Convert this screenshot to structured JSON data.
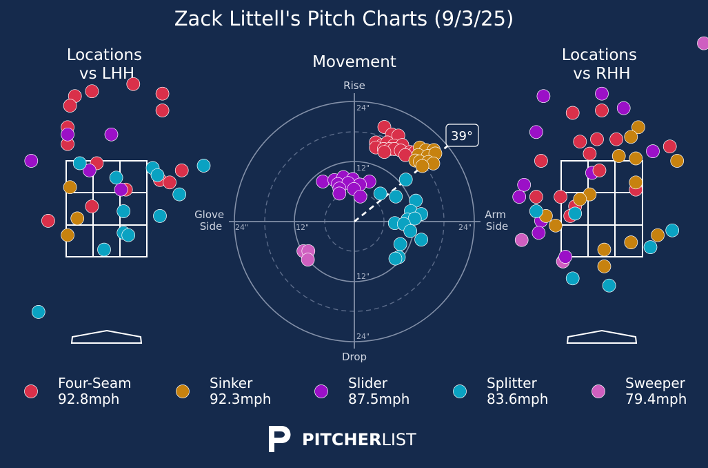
{
  "title": "Zack Littell's Pitch Charts (9/3/25)",
  "colors": {
    "background": "#152a4c",
    "Four-Seam": "#d9304a",
    "Sinker": "#c7820f",
    "Slider": "#9b10c7",
    "Splitter": "#0aa2c2",
    "Sweeper": "#cf5fc0"
  },
  "branding": {
    "pitcher": "PITCHER",
    "list": "LIST"
  },
  "chart_data": [
    {
      "type": "scatter",
      "id": "loc_lhh",
      "title": [
        "Locations",
        "vs LHH"
      ],
      "x_range": [
        -2,
        2
      ],
      "y_range": [
        -0.5,
        6
      ],
      "points": [
        {
          "pitch": "Four-Seam",
          "x": 0.55,
          "y": 5.1
        },
        {
          "pitch": "Four-Seam",
          "x": -0.65,
          "y": 4.85
        },
        {
          "pitch": "Four-Seam",
          "x": 1.15,
          "y": 4.9
        },
        {
          "pitch": "Four-Seam",
          "x": -0.3,
          "y": 4.95
        },
        {
          "pitch": "Four-Seam",
          "x": -0.75,
          "y": 4.65
        },
        {
          "pitch": "Four-Seam",
          "x": 1.15,
          "y": 4.55
        },
        {
          "pitch": "Four-Seam",
          "x": -0.8,
          "y": 4.2
        },
        {
          "pitch": "Four-Seam",
          "x": -0.8,
          "y": 3.85
        },
        {
          "pitch": "Four-Seam",
          "x": -0.2,
          "y": 3.45
        },
        {
          "pitch": "Four-Seam",
          "x": 1.55,
          "y": 3.3
        },
        {
          "pitch": "Four-Seam",
          "x": 1.1,
          "y": 3.1
        },
        {
          "pitch": "Four-Seam",
          "x": 1.3,
          "y": 3.05
        },
        {
          "pitch": "Four-Seam",
          "x": 0.4,
          "y": 2.9
        },
        {
          "pitch": "Four-Seam",
          "x": -0.3,
          "y": 2.55
        },
        {
          "pitch": "Four-Seam",
          "x": -1.2,
          "y": 2.25
        },
        {
          "pitch": "Slider",
          "x": -0.8,
          "y": 4.05
        },
        {
          "pitch": "Slider",
          "x": 0.1,
          "y": 4.05
        },
        {
          "pitch": "Slider",
          "x": -1.55,
          "y": 3.5
        },
        {
          "pitch": "Slider",
          "x": -0.35,
          "y": 3.3
        },
        {
          "pitch": "Slider",
          "x": 0.3,
          "y": 2.9
        },
        {
          "pitch": "Splitter",
          "x": 2.0,
          "y": 3.4
        },
        {
          "pitch": "Splitter",
          "x": 0.95,
          "y": 3.35
        },
        {
          "pitch": "Splitter",
          "x": 1.05,
          "y": 3.2
        },
        {
          "pitch": "Splitter",
          "x": -0.55,
          "y": 3.45
        },
        {
          "pitch": "Splitter",
          "x": 0.2,
          "y": 3.15
        },
        {
          "pitch": "Splitter",
          "x": 1.5,
          "y": 2.8
        },
        {
          "pitch": "Splitter",
          "x": 0.35,
          "y": 2.45
        },
        {
          "pitch": "Splitter",
          "x": 1.1,
          "y": 2.35
        },
        {
          "pitch": "Splitter",
          "x": 0.35,
          "y": 2.0
        },
        {
          "pitch": "Splitter",
          "x": 0.45,
          "y": 1.95
        },
        {
          "pitch": "Splitter",
          "x": -0.05,
          "y": 1.65
        },
        {
          "pitch": "Splitter",
          "x": -1.4,
          "y": 0.35
        },
        {
          "pitch": "Sinker",
          "x": -0.75,
          "y": 2.95
        },
        {
          "pitch": "Sinker",
          "x": -0.6,
          "y": 2.3
        },
        {
          "pitch": "Sinker",
          "x": -0.8,
          "y": 1.95
        }
      ]
    },
    {
      "type": "scatter",
      "id": "movement",
      "title": "Movement",
      "axis_labels": {
        "top": "Rise",
        "bottom": "Drop",
        "left": [
          "Glove",
          "Side"
        ],
        "right": [
          "Arm",
          "Side"
        ]
      },
      "ring_labels": [
        "24\"",
        "12\"",
        "24\"",
        "12\"",
        "12\"",
        "24\"",
        "12\"",
        "24\""
      ],
      "arm_angle_label": "39°",
      "arm_angle_deg": 39,
      "range_in": [
        -25,
        25
      ],
      "points": [
        {
          "pitch": "Four-Seam",
          "x": 6.0,
          "y": 18.9
        },
        {
          "pitch": "Four-Seam",
          "x": 7.5,
          "y": 17.4
        },
        {
          "pitch": "Four-Seam",
          "x": 8.8,
          "y": 17.2
        },
        {
          "pitch": "Four-Seam",
          "x": 4.3,
          "y": 15.8
        },
        {
          "pitch": "Four-Seam",
          "x": 5.6,
          "y": 15.3
        },
        {
          "pitch": "Four-Seam",
          "x": 6.6,
          "y": 15.8
        },
        {
          "pitch": "Four-Seam",
          "x": 7.9,
          "y": 15.2
        },
        {
          "pitch": "Four-Seam",
          "x": 9.6,
          "y": 15.3
        },
        {
          "pitch": "Four-Seam",
          "x": 4.3,
          "y": 14.8
        },
        {
          "pitch": "Four-Seam",
          "x": 5.9,
          "y": 14.5
        },
        {
          "pitch": "Four-Seam",
          "x": 7.1,
          "y": 14.5
        },
        {
          "pitch": "Four-Seam",
          "x": 8.0,
          "y": 14.5
        },
        {
          "pitch": "Four-Seam",
          "x": 9.3,
          "y": 14.2
        },
        {
          "pitch": "Four-Seam",
          "x": 6.0,
          "y": 13.9
        },
        {
          "pitch": "Four-Seam",
          "x": 11.2,
          "y": 13.9
        },
        {
          "pitch": "Four-Seam",
          "x": 12.2,
          "y": 13.9
        },
        {
          "pitch": "Four-Seam",
          "x": 10.2,
          "y": 13.3
        },
        {
          "pitch": "Four-Seam",
          "x": 13.6,
          "y": 13.6
        },
        {
          "pitch": "Sinker",
          "x": 13.1,
          "y": 14.8
        },
        {
          "pitch": "Sinker",
          "x": 14.3,
          "y": 14.3
        },
        {
          "pitch": "Sinker",
          "x": 15.9,
          "y": 14.3
        },
        {
          "pitch": "Sinker",
          "x": 12.8,
          "y": 13.3
        },
        {
          "pitch": "Sinker",
          "x": 14.7,
          "y": 13.1
        },
        {
          "pitch": "Sinker",
          "x": 16.2,
          "y": 13.6
        },
        {
          "pitch": "Sinker",
          "x": 12.2,
          "y": 12.2
        },
        {
          "pitch": "Sinker",
          "x": 13.1,
          "y": 12.0
        },
        {
          "pitch": "Sinker",
          "x": 14.8,
          "y": 11.9
        },
        {
          "pitch": "Sinker",
          "x": 15.8,
          "y": 11.6
        },
        {
          "pitch": "Sinker",
          "x": 13.6,
          "y": 11.1
        },
        {
          "pitch": "Slider",
          "x": -6.3,
          "y": 8.0
        },
        {
          "pitch": "Slider",
          "x": -4.0,
          "y": 8.3
        },
        {
          "pitch": "Slider",
          "x": -2.2,
          "y": 8.9
        },
        {
          "pitch": "Slider",
          "x": -0.3,
          "y": 8.5
        },
        {
          "pitch": "Slider",
          "x": 3.0,
          "y": 8.0
        },
        {
          "pitch": "Slider",
          "x": -3.3,
          "y": 7.5
        },
        {
          "pitch": "Slider",
          "x": -1.2,
          "y": 7.7
        },
        {
          "pitch": "Slider",
          "x": 1.1,
          "y": 7.4
        },
        {
          "pitch": "Slider",
          "x": -3.0,
          "y": 6.6
        },
        {
          "pitch": "Slider",
          "x": -0.1,
          "y": 6.5
        },
        {
          "pitch": "Slider",
          "x": -3.0,
          "y": 5.6
        },
        {
          "pitch": "Slider",
          "x": 1.2,
          "y": 5.0
        },
        {
          "pitch": "Splitter",
          "x": 10.3,
          "y": 8.4
        },
        {
          "pitch": "Splitter",
          "x": 5.2,
          "y": 5.6
        },
        {
          "pitch": "Splitter",
          "x": 8.3,
          "y": 5.0
        },
        {
          "pitch": "Splitter",
          "x": 12.3,
          "y": 4.2
        },
        {
          "pitch": "Splitter",
          "x": 11.3,
          "y": 2.1
        },
        {
          "pitch": "Splitter",
          "x": 13.4,
          "y": 1.5
        },
        {
          "pitch": "Splitter",
          "x": 10.6,
          "y": 0.4
        },
        {
          "pitch": "Splitter",
          "x": 12.1,
          "y": 0.6
        },
        {
          "pitch": "Splitter",
          "x": 8.1,
          "y": -0.3
        },
        {
          "pitch": "Splitter",
          "x": 9.9,
          "y": -0.5
        },
        {
          "pitch": "Splitter",
          "x": 11.2,
          "y": -1.9
        },
        {
          "pitch": "Splitter",
          "x": 13.4,
          "y": -3.6
        },
        {
          "pitch": "Splitter",
          "x": 9.2,
          "y": -4.5
        },
        {
          "pitch": "Splitter",
          "x": 8.9,
          "y": -7.1
        },
        {
          "pitch": "Splitter",
          "x": 8.2,
          "y": -7.4
        },
        {
          "pitch": "Sweeper",
          "x": -10.2,
          "y": -5.9
        },
        {
          "pitch": "Sweeper",
          "x": -9.2,
          "y": -5.9
        },
        {
          "pitch": "Sweeper",
          "x": -9.3,
          "y": -7.6
        }
      ]
    },
    {
      "type": "scatter",
      "id": "loc_rhh",
      "title": [
        "Locations",
        "vs RHH"
      ],
      "x_range": [
        -2,
        2
      ],
      "y_range": [
        -0.5,
        6
      ],
      "points": [
        {
          "pitch": "Sweeper",
          "x": 2.1,
          "y": 5.95
        },
        {
          "pitch": "Sweeper",
          "x": -1.65,
          "y": 1.85
        },
        {
          "pitch": "Sweeper",
          "x": -0.8,
          "y": 1.4
        },
        {
          "pitch": "Slider",
          "x": -1.2,
          "y": 4.85
        },
        {
          "pitch": "Slider",
          "x": 0.0,
          "y": 4.9
        },
        {
          "pitch": "Slider",
          "x": 0.45,
          "y": 4.6
        },
        {
          "pitch": "Slider",
          "x": -1.35,
          "y": 4.1
        },
        {
          "pitch": "Slider",
          "x": 1.05,
          "y": 3.7
        },
        {
          "pitch": "Slider",
          "x": -0.2,
          "y": 3.25
        },
        {
          "pitch": "Slider",
          "x": -1.6,
          "y": 3.0
        },
        {
          "pitch": "Slider",
          "x": -1.7,
          "y": 2.75
        },
        {
          "pitch": "Slider",
          "x": -1.25,
          "y": 2.25
        },
        {
          "pitch": "Slider",
          "x": -1.3,
          "y": 2.0
        },
        {
          "pitch": "Slider",
          "x": -0.75,
          "y": 1.5
        },
        {
          "pitch": "Four-Seam",
          "x": -0.6,
          "y": 4.5
        },
        {
          "pitch": "Four-Seam",
          "x": 0.0,
          "y": 4.55
        },
        {
          "pitch": "Four-Seam",
          "x": -0.1,
          "y": 3.95
        },
        {
          "pitch": "Four-Seam",
          "x": -0.45,
          "y": 3.9
        },
        {
          "pitch": "Four-Seam",
          "x": 0.3,
          "y": 3.95
        },
        {
          "pitch": "Four-Seam",
          "x": 1.4,
          "y": 3.8
        },
        {
          "pitch": "Four-Seam",
          "x": -0.25,
          "y": 3.65
        },
        {
          "pitch": "Four-Seam",
          "x": -1.25,
          "y": 3.5
        },
        {
          "pitch": "Four-Seam",
          "x": -0.05,
          "y": 3.3
        },
        {
          "pitch": "Four-Seam",
          "x": -0.85,
          "y": 2.75
        },
        {
          "pitch": "Four-Seam",
          "x": 0.7,
          "y": 2.9
        },
        {
          "pitch": "Four-Seam",
          "x": -0.55,
          "y": 2.55
        },
        {
          "pitch": "Four-Seam",
          "x": -0.65,
          "y": 2.35
        },
        {
          "pitch": "Four-Seam",
          "x": -1.35,
          "y": 2.75
        },
        {
          "pitch": "Sinker",
          "x": 0.75,
          "y": 4.2
        },
        {
          "pitch": "Sinker",
          "x": 0.6,
          "y": 4.0
        },
        {
          "pitch": "Sinker",
          "x": 0.35,
          "y": 3.6
        },
        {
          "pitch": "Sinker",
          "x": 0.7,
          "y": 3.55
        },
        {
          "pitch": "Sinker",
          "x": 1.55,
          "y": 3.5
        },
        {
          "pitch": "Sinker",
          "x": 0.7,
          "y": 3.05
        },
        {
          "pitch": "Sinker",
          "x": -0.25,
          "y": 2.8
        },
        {
          "pitch": "Sinker",
          "x": -0.45,
          "y": 2.7
        },
        {
          "pitch": "Sinker",
          "x": -1.15,
          "y": 2.35
        },
        {
          "pitch": "Sinker",
          "x": -0.95,
          "y": 2.15
        },
        {
          "pitch": "Sinker",
          "x": 1.15,
          "y": 1.95
        },
        {
          "pitch": "Sinker",
          "x": 0.6,
          "y": 1.8
        },
        {
          "pitch": "Sinker",
          "x": 0.05,
          "y": 1.65
        },
        {
          "pitch": "Sinker",
          "x": 0.05,
          "y": 1.3
        },
        {
          "pitch": "Splitter",
          "x": -1.35,
          "y": 2.45
        },
        {
          "pitch": "Splitter",
          "x": -0.55,
          "y": 2.4
        },
        {
          "pitch": "Splitter",
          "x": 1.45,
          "y": 2.05
        },
        {
          "pitch": "Splitter",
          "x": 1.0,
          "y": 1.7
        },
        {
          "pitch": "Splitter",
          "x": -0.6,
          "y": 1.05
        },
        {
          "pitch": "Splitter",
          "x": 0.15,
          "y": 0.9
        }
      ]
    }
  ],
  "legend": [
    {
      "pitch": "Four-Seam",
      "name": "Four-Seam",
      "speed": "92.8mph"
    },
    {
      "pitch": "Sinker",
      "name": "Sinker",
      "speed": "92.3mph"
    },
    {
      "pitch": "Slider",
      "name": "Slider",
      "speed": "87.5mph"
    },
    {
      "pitch": "Splitter",
      "name": "Splitter",
      "speed": "83.6mph"
    },
    {
      "pitch": "Sweeper",
      "name": "Sweeper",
      "speed": "79.4mph"
    }
  ]
}
